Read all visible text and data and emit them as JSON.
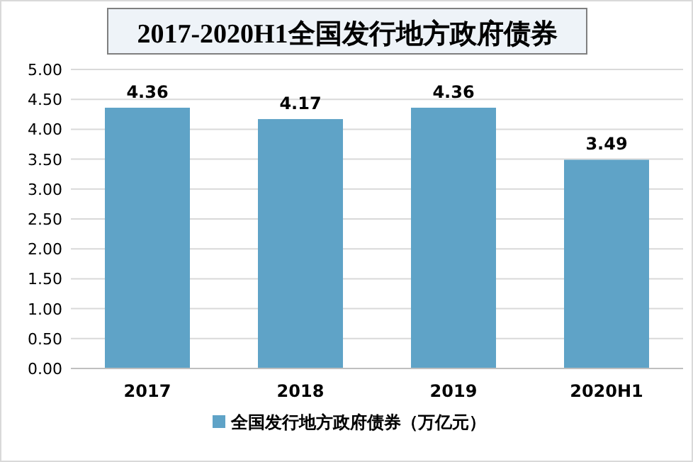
{
  "chart_data": {
    "type": "bar",
    "title": "2017-2020H1全国发行地方政府债券",
    "categories": [
      "2017",
      "2018",
      "2019",
      "2020H1"
    ],
    "series": [
      {
        "name": "全国发行地方政府债券（万亿元）",
        "color": "#5fa3c7",
        "values": [
          4.36,
          4.17,
          4.36,
          3.49
        ]
      }
    ],
    "ylim": [
      0,
      5
    ],
    "yticks": [
      {
        "value": 0,
        "label": "0.00"
      },
      {
        "value": 0.5,
        "label": "0.50"
      },
      {
        "value": 1,
        "label": "1.00"
      },
      {
        "value": 1.5,
        "label": "1.50"
      },
      {
        "value": 2,
        "label": "2.00"
      },
      {
        "value": 2.5,
        "label": "2.50"
      },
      {
        "value": 3,
        "label": "3.00"
      },
      {
        "value": 3.5,
        "label": "3.50"
      },
      {
        "value": 4,
        "label": "4.00"
      },
      {
        "value": 4.5,
        "label": "4.50"
      },
      {
        "value": 5,
        "label": "5.00"
      }
    ],
    "grid": "y",
    "legend": "bottom",
    "data_labels": true
  }
}
